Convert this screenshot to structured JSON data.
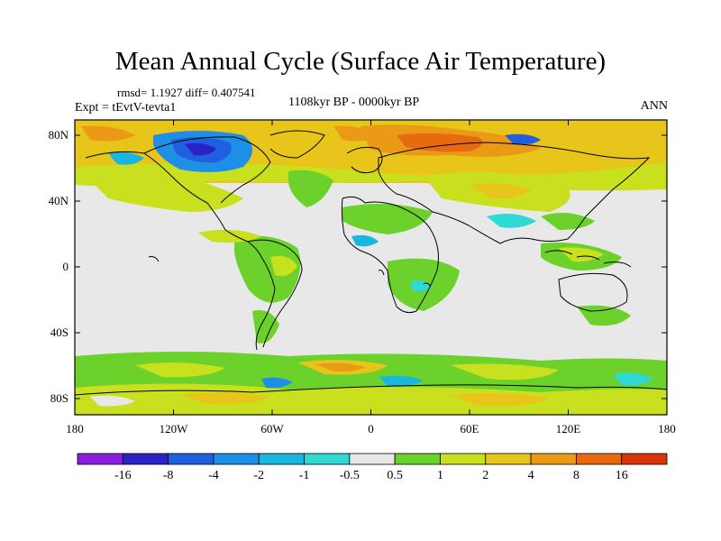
{
  "header": {
    "title": "Mean Annual Cycle (Surface Air Temperature)",
    "stats": "rmsd= 1.1927 diff= 0.407541",
    "experiment": "Expt = tEvtV-tevta1",
    "period": "1108kyr BP - 0000kyr BP",
    "season": "ANN"
  },
  "axes": {
    "lat_labels": [
      "80N",
      "40N",
      "0",
      "40S",
      "80S"
    ],
    "lon_labels": [
      "180",
      "120W",
      "60W",
      "0",
      "60E",
      "120E",
      "180"
    ]
  },
  "colorbar": {
    "labels": [
      "-16",
      "-8",
      "-4",
      "-2",
      "-1",
      "-0.5",
      "0.5",
      "1",
      "2",
      "4",
      "8",
      "16"
    ],
    "colors": [
      "#8a1fe0",
      "#2b22c8",
      "#1f5fe0",
      "#1e8fe6",
      "#19b6e0",
      "#2fd9d4",
      "#e8e8e8",
      "#6cd12a",
      "#c8e01e",
      "#e8c51a",
      "#eb9a16",
      "#e86a10",
      "#d9340a"
    ]
  },
  "colors": {
    "neutral": "#e8e8e8",
    "coast": "#000000"
  }
}
